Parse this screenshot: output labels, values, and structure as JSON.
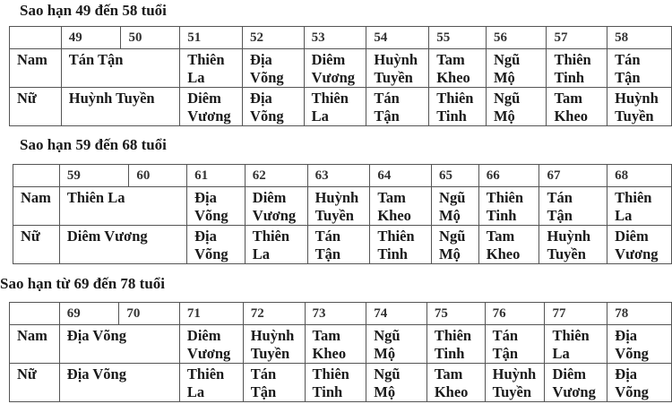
{
  "sections": [
    {
      "title": "Sao hạn 49 đến 58 tuổi",
      "ages": [
        "49",
        "50",
        "51",
        "52",
        "53",
        "54",
        "55",
        "56",
        "57",
        "58"
      ],
      "rows": [
        {
          "label": "Nam",
          "merged": "Tán Tận",
          "cells": [
            "Thiên La",
            "Địa Võng",
            "Diêm Vương",
            "Huỳnh Tuyền",
            "Tam Kheo",
            "Ngũ Mộ",
            "Thiên Tinh",
            "Tán Tận"
          ]
        },
        {
          "label": "Nữ",
          "merged": "Huỳnh Tuyền",
          "cells": [
            "Diêm Vương",
            "Địa Võng",
            "Thiên La",
            "Tán Tận",
            "Thiên Tinh",
            "Ngũ Mộ",
            "Tam Kheo",
            "Huỳnh Tuyền"
          ]
        }
      ]
    },
    {
      "title": "Sao hạn 59 đến 68 tuổi",
      "ages": [
        "59",
        "60",
        "61",
        "62",
        "63",
        "64",
        "65",
        "66",
        "67",
        "68"
      ],
      "rows": [
        {
          "label": "Nam",
          "merged": "Thiên La",
          "cells": [
            "Địa Võng",
            "Diêm Vương",
            "Huỳnh Tuyền",
            "Tam Kheo",
            "Ngũ Mộ",
            "Thiên Tinh",
            "Tán Tận",
            "Thiên La"
          ]
        },
        {
          "label": "Nữ",
          "merged": "Diêm Vương",
          "cells": [
            "Địa Võng",
            "Thiên La",
            "Tán Tận",
            "Thiên Tinh",
            "Ngũ Mộ",
            "Tam Kheo",
            "Huỳnh Tuyền",
            "Diêm Vương"
          ]
        }
      ]
    },
    {
      "title": "Sao hạn từ 69 đến 78 tuổi",
      "ages": [
        "69",
        "70",
        "71",
        "72",
        "73",
        "74",
        "75",
        "76",
        "77",
        "78"
      ],
      "rows": [
        {
          "label": "Nam",
          "merged": "Địa Võng",
          "cells": [
            "Diêm Vương",
            "Huỳnh Tuyền",
            "Tam Kheo",
            "Ngũ Mộ",
            "Thiên Tinh",
            "Tán Tận",
            "Thiên La",
            "Địa Võng"
          ]
        },
        {
          "label": "Nữ",
          "merged": "Địa Võng",
          "cells": [
            "Thiên La",
            "Tán Tận",
            "Thiên Tinh",
            "Ngũ Mộ",
            "Tam Kheo",
            "Huỳnh Tuyền",
            "Diêm Vương",
            "Địa Võng"
          ]
        }
      ]
    }
  ]
}
